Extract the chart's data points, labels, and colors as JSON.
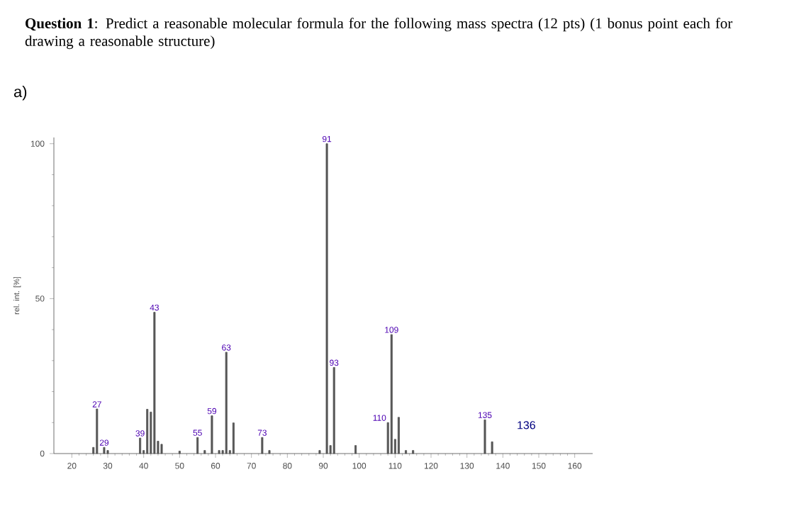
{
  "chart_data": {
    "type": "bar",
    "title": "**Question 1**: Predict a reasonable molecular formula for the following mass spectra (12 pts) (1 bonus point each for drawing a reasonable structure)",
    "subtitle": "a)",
    "ylabel": "rel. int. [%]",
    "x": [
      26,
      27,
      29,
      30,
      39,
      40,
      41,
      42,
      43,
      44,
      45,
      50,
      55,
      57,
      59,
      61,
      62,
      63,
      64,
      65,
      73,
      75,
      89,
      91,
      92,
      93,
      99,
      108,
      109,
      110,
      111,
      113,
      115,
      135,
      137
    ],
    "values": [
      2,
      14.4,
      2,
      1,
      5,
      1,
      14.3,
      13.4,
      45.6,
      4,
      3,
      0.8,
      5.2,
      1,
      12.2,
      1,
      1,
      32.7,
      1,
      9.9,
      5.2,
      1,
      1,
      100,
      2.6,
      27.8,
      2.6,
      10,
      38.4,
      4.6,
      11.7,
      1,
      1,
      10.9,
      3.8
    ],
    "color": "#555555",
    "xlim": [
      15,
      165
    ],
    "xticks": [
      20,
      30,
      40,
      50,
      60,
      70,
      80,
      90,
      100,
      110,
      120,
      130,
      140,
      150,
      160
    ],
    "ylim": [
      0,
      102
    ],
    "yticks": [
      0,
      50,
      100
    ],
    "annotations": [
      {
        "text": "27",
        "x": 27,
        "y": 14.4
      },
      {
        "text": "29",
        "x": 29,
        "y": 2
      },
      {
        "text": "39",
        "x": 39,
        "y": 5
      },
      {
        "text": "43",
        "x": 43,
        "y": 45.6
      },
      {
        "text": "55",
        "x": 55,
        "y": 5.2
      },
      {
        "text": "59",
        "x": 59,
        "y": 12.2
      },
      {
        "text": "63",
        "x": 63,
        "y": 32.7
      },
      {
        "text": "73",
        "x": 73,
        "y": 5.2
      },
      {
        "text": "91",
        "x": 91,
        "y": 100
      },
      {
        "text": "93",
        "x": 93,
        "y": 27.8
      },
      {
        "text": "109",
        "x": 109,
        "y": 38.4
      },
      {
        "text": "110",
        "x": 108,
        "y": 10
      },
      {
        "text": "135",
        "x": 135,
        "y": 10.9
      },
      "136"
    ]
  }
}
